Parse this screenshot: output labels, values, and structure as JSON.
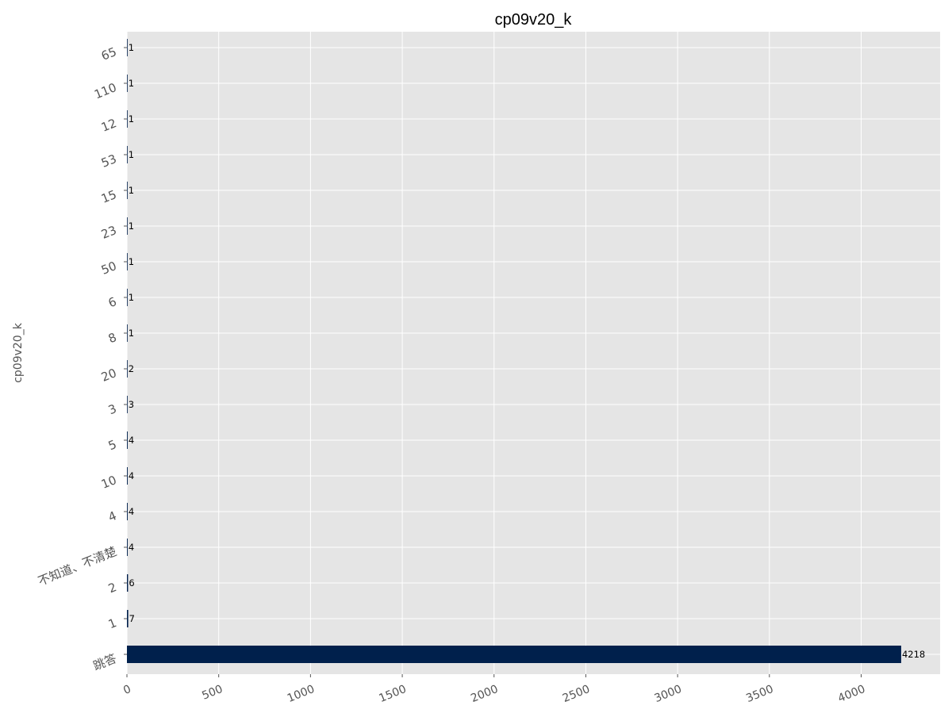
{
  "chart_data": {
    "type": "bar",
    "orientation": "horizontal",
    "title": "cp09v20_k",
    "xlabel": "",
    "ylabel": "cp09v20_k",
    "categories": [
      "跳答",
      "1",
      "2",
      "不知道、不清楚",
      "4",
      "10",
      "5",
      "3",
      "20",
      "8",
      "6",
      "50",
      "23",
      "15",
      "53",
      "12",
      "110",
      "65"
    ],
    "values": [
      4218,
      7,
      6,
      4,
      4,
      4,
      4,
      3,
      2,
      1,
      1,
      1,
      1,
      1,
      1,
      1,
      1,
      1
    ],
    "xlim": [
      0,
      4430
    ],
    "xticks": [
      0,
      500,
      1000,
      1500,
      2000,
      2500,
      3000,
      3500,
      4000
    ],
    "grid": true,
    "colors": {
      "bar": "#00204c",
      "plot_bg": "#e5e5e5",
      "grid": "#ffffff",
      "tick_text": "#555555"
    }
  }
}
